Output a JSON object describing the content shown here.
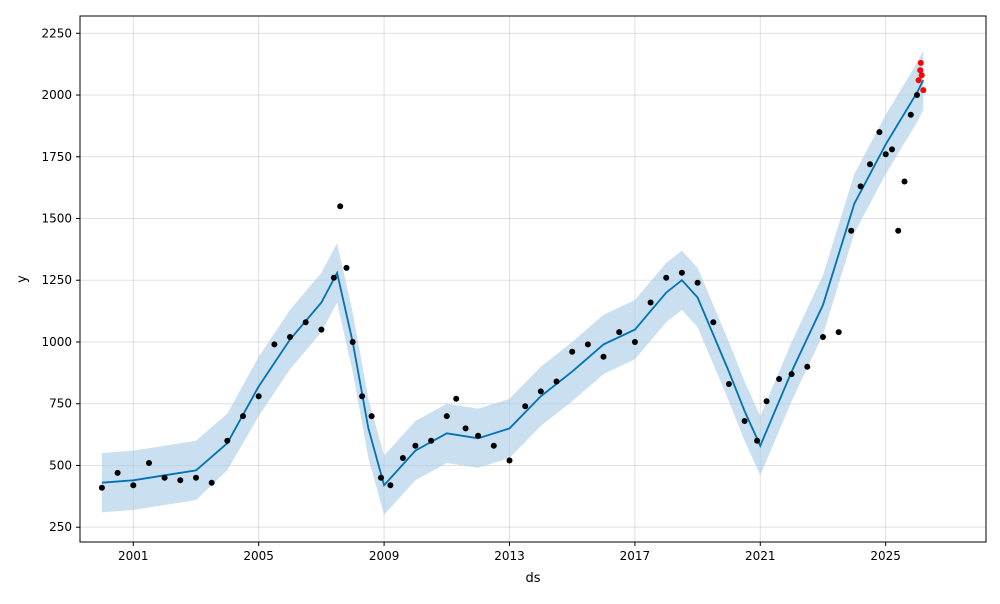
{
  "chart_data": {
    "type": "line",
    "title": "",
    "xlabel": "ds",
    "ylabel": "y",
    "xlim": [
      1999.3,
      2028.2
    ],
    "ylim": [
      190,
      2320
    ],
    "x_ticks": [
      2001,
      2005,
      2009,
      2013,
      2017,
      2021,
      2025
    ],
    "x_tick_labels": [
      "2001",
      "2005",
      "2009",
      "2013",
      "2017",
      "2021",
      "2025"
    ],
    "y_ticks": [
      250,
      500,
      750,
      1000,
      1250,
      1500,
      1750,
      2000,
      2250
    ],
    "y_tick_labels": [
      "250",
      "500",
      "750",
      "1000",
      "1250",
      "1500",
      "1750",
      "2000",
      "2250"
    ],
    "grid": true,
    "colors": {
      "forecast_line": "#0072B2",
      "uncertainty_band": "#a7cbe6",
      "observed_points": "#000000",
      "highlight_points": "#ff0000"
    },
    "series": [
      {
        "kind": "forecast",
        "x": [
          2000.0,
          2001.0,
          2002.0,
          2003.0,
          2004.0,
          2005.0,
          2006.0,
          2007.0,
          2007.5,
          2008.0,
          2008.5,
          2009.0,
          2010.0,
          2011.0,
          2012.0,
          2013.0,
          2014.0,
          2015.0,
          2016.0,
          2017.0,
          2018.0,
          2018.5,
          2019.0,
          2020.0,
          2020.5,
          2021.0,
          2022.0,
          2023.0,
          2024.0,
          2025.0,
          2026.0,
          2026.2
        ],
        "y": [
          430,
          440,
          460,
          480,
          590,
          820,
          1010,
          1160,
          1280,
          1000,
          650,
          420,
          560,
          630,
          610,
          650,
          780,
          880,
          990,
          1050,
          1200,
          1250,
          1180,
          880,
          720,
          580,
          880,
          1150,
          1560,
          1800,
          2010,
          2060
        ],
        "lower": [
          310,
          320,
          340,
          360,
          480,
          700,
          890,
          1040,
          1160,
          880,
          530,
          300,
          440,
          510,
          490,
          530,
          660,
          760,
          870,
          930,
          1080,
          1130,
          1060,
          760,
          600,
          460,
          760,
          1030,
          1440,
          1680,
          1890,
          1940
        ],
        "upper": [
          550,
          560,
          580,
          600,
          710,
          940,
          1130,
          1280,
          1400,
          1120,
          770,
          540,
          680,
          750,
          730,
          770,
          900,
          1000,
          1110,
          1170,
          1320,
          1370,
          1300,
          1000,
          840,
          700,
          1000,
          1270,
          1680,
          1920,
          2130,
          2180
        ]
      },
      {
        "kind": "observed",
        "x": [
          2000.0,
          2000.5,
          2001.0,
          2001.5,
          2002.0,
          2002.5,
          2003.0,
          2003.5,
          2004.0,
          2004.5,
          2005.0,
          2005.5,
          2006.0,
          2006.5,
          2007.0,
          2007.4,
          2007.6,
          2007.8,
          2008.0,
          2008.3,
          2008.6,
          2008.9,
          2009.2,
          2009.6,
          2010.0,
          2010.5,
          2011.0,
          2011.3,
          2011.6,
          2012.0,
          2012.5,
          2013.0,
          2013.5,
          2014.0,
          2014.5,
          2015.0,
          2015.5,
          2016.0,
          2016.5,
          2017.0,
          2017.5,
          2018.0,
          2018.5,
          2019.0,
          2019.5,
          2020.0,
          2020.5,
          2020.9,
          2021.2,
          2021.6,
          2022.0,
          2022.5,
          2023.0,
          2023.5,
          2023.9,
          2024.2,
          2024.5,
          2024.8,
          2025.0,
          2025.2,
          2025.4,
          2025.6,
          2025.8,
          2026.0
        ],
        "y": [
          410,
          470,
          420,
          510,
          450,
          440,
          450,
          430,
          600,
          700,
          780,
          990,
          1020,
          1080,
          1050,
          1260,
          1550,
          1300,
          1000,
          780,
          700,
          450,
          420,
          530,
          580,
          600,
          700,
          770,
          650,
          620,
          580,
          520,
          740,
          800,
          840,
          960,
          990,
          940,
          1040,
          1000,
          1160,
          1260,
          1280,
          1240,
          1080,
          830,
          680,
          600,
          760,
          850,
          870,
          900,
          1020,
          1040,
          1450,
          1630,
          1720,
          1850,
          1760,
          1780,
          1450,
          1650,
          1920,
          2000
        ]
      },
      {
        "kind": "recent",
        "x": [
          2026.05,
          2026.1,
          2026.12,
          2026.15,
          2026.2
        ],
        "y": [
          2060,
          2100,
          2130,
          2080,
          2020
        ]
      }
    ]
  }
}
